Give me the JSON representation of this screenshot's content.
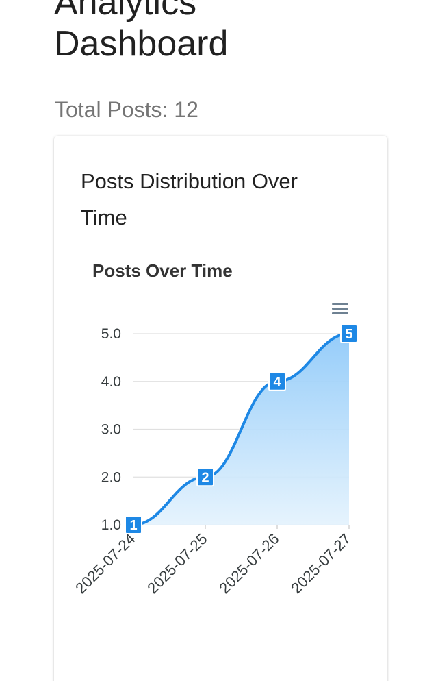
{
  "page": {
    "title": "Analytics Dashboard",
    "total_posts_label": "Total Posts: 12"
  },
  "card": {
    "title": "Posts Distribution Over Time",
    "menu_icon": "hamburger-menu-icon"
  },
  "colors": {
    "series": "#1e88e5",
    "area_top": "#90caf9",
    "area_bottom": "#e3f2fd",
    "grid": "#e0e0e0",
    "label_bg": "#1e88e5"
  },
  "chart_data": {
    "type": "area",
    "title": "Posts Over Time",
    "categories": [
      "2025-07-24",
      "2025-07-25",
      "2025-07-26",
      "2025-07-27"
    ],
    "series": [
      {
        "values": [
          1,
          2,
          4,
          5
        ]
      }
    ],
    "y_ticks": [
      "1.0",
      "2.0",
      "3.0",
      "4.0",
      "5.0"
    ],
    "ylim": [
      1,
      5
    ],
    "grid": true,
    "data_labels": true,
    "curve": "smooth"
  }
}
